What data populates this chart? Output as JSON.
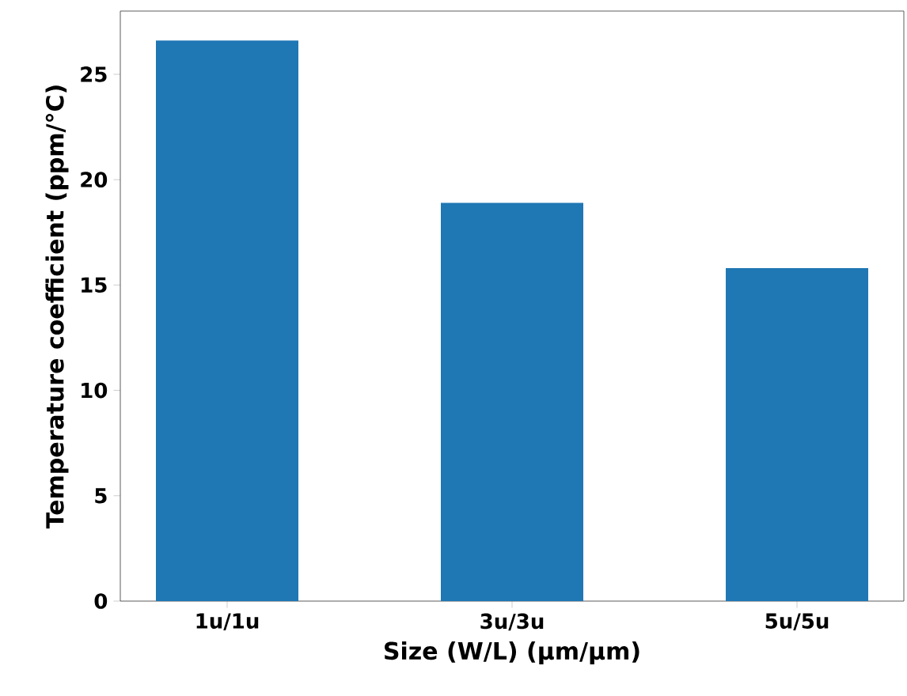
{
  "chart_data": {
    "type": "bar",
    "xlabel": "Size (W/L) (µm/µm)",
    "ylabel": "Temperature coefficient (ppm/°C)",
    "categories": [
      "1u/1u",
      "3u/3u",
      "5u/5u"
    ],
    "values": [
      26.6,
      18.9,
      15.8
    ],
    "color": "#1f77b4",
    "ylim": [
      0,
      28
    ],
    "yticks": [
      0,
      5,
      10,
      15,
      20,
      25
    ]
  }
}
